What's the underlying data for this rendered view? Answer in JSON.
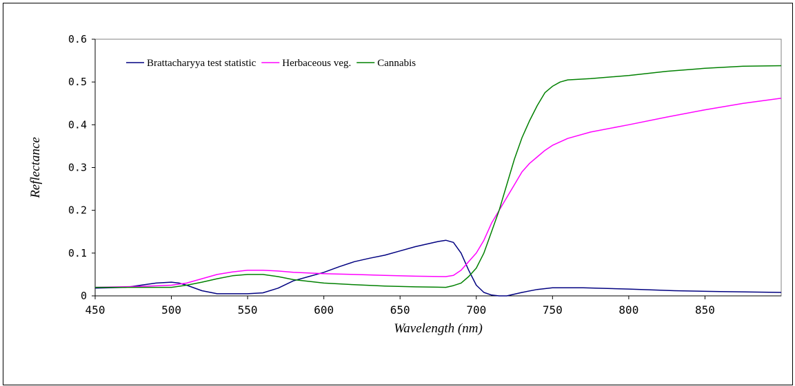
{
  "chart_data": {
    "type": "line",
    "xlabel": "Wavelength (nm)",
    "ylabel": "Reflectance",
    "xlim": [
      450,
      900
    ],
    "ylim": [
      0,
      0.6
    ],
    "x_ticks": [
      450,
      500,
      550,
      600,
      650,
      700,
      750,
      800,
      850
    ],
    "x_tick_labels": [
      "450",
      "500",
      "550",
      "600",
      "650",
      "700",
      "750",
      "800",
      "850"
    ],
    "y_ticks": [
      0,
      0.1,
      0.2,
      0.3,
      0.4,
      0.5,
      0.6
    ],
    "y_tick_labels": [
      "0",
      "0.1",
      "0.2",
      "0.3",
      "0.4",
      "0.5",
      "0.6"
    ],
    "grid": false,
    "legend_position": "top-left",
    "series": [
      {
        "name": "Brattacharyya test statistic",
        "color": "#000080",
        "x": [
          450,
          470,
          480,
          490,
          500,
          505,
          510,
          520,
          530,
          540,
          550,
          560,
          570,
          580,
          590,
          600,
          610,
          620,
          630,
          640,
          650,
          660,
          670,
          675,
          680,
          685,
          690,
          695,
          700,
          705,
          710,
          715,
          720,
          730,
          740,
          750,
          770,
          800,
          830,
          860,
          880,
          900
        ],
        "y": [
          0.018,
          0.02,
          0.025,
          0.03,
          0.032,
          0.03,
          0.025,
          0.012,
          0.005,
          0.005,
          0.005,
          0.007,
          0.018,
          0.035,
          0.045,
          0.055,
          0.068,
          0.08,
          0.088,
          0.095,
          0.105,
          0.115,
          0.123,
          0.127,
          0.13,
          0.125,
          0.1,
          0.06,
          0.025,
          0.008,
          0.002,
          0.0,
          0.0,
          0.008,
          0.015,
          0.019,
          0.019,
          0.016,
          0.012,
          0.01,
          0.009,
          0.008
        ]
      },
      {
        "name": "Herbaceous veg.",
        "color": "#ff00ff",
        "x": [
          450,
          480,
          500,
          510,
          520,
          530,
          540,
          550,
          560,
          570,
          580,
          600,
          620,
          640,
          660,
          680,
          685,
          690,
          695,
          700,
          705,
          710,
          715,
          720,
          725,
          730,
          735,
          740,
          745,
          750,
          760,
          775,
          800,
          825,
          850,
          875,
          900
        ],
        "y": [
          0.02,
          0.022,
          0.025,
          0.03,
          0.04,
          0.05,
          0.056,
          0.06,
          0.06,
          0.058,
          0.055,
          0.052,
          0.05,
          0.048,
          0.046,
          0.045,
          0.048,
          0.06,
          0.08,
          0.1,
          0.13,
          0.17,
          0.2,
          0.23,
          0.26,
          0.29,
          0.31,
          0.325,
          0.34,
          0.352,
          0.368,
          0.383,
          0.4,
          0.418,
          0.435,
          0.45,
          0.462
        ]
      },
      {
        "name": "Cannabis",
        "color": "#008000",
        "x": [
          450,
          480,
          500,
          510,
          520,
          530,
          540,
          550,
          560,
          570,
          580,
          600,
          620,
          640,
          660,
          680,
          685,
          690,
          695,
          700,
          705,
          710,
          715,
          720,
          725,
          730,
          735,
          740,
          745,
          750,
          755,
          760,
          775,
          800,
          825,
          850,
          875,
          900
        ],
        "y": [
          0.02,
          0.02,
          0.02,
          0.025,
          0.032,
          0.04,
          0.047,
          0.05,
          0.05,
          0.045,
          0.038,
          0.03,
          0.026,
          0.023,
          0.021,
          0.02,
          0.024,
          0.03,
          0.045,
          0.065,
          0.1,
          0.15,
          0.2,
          0.26,
          0.32,
          0.37,
          0.41,
          0.445,
          0.475,
          0.49,
          0.5,
          0.505,
          0.508,
          0.515,
          0.525,
          0.532,
          0.537,
          0.538
        ]
      }
    ]
  }
}
